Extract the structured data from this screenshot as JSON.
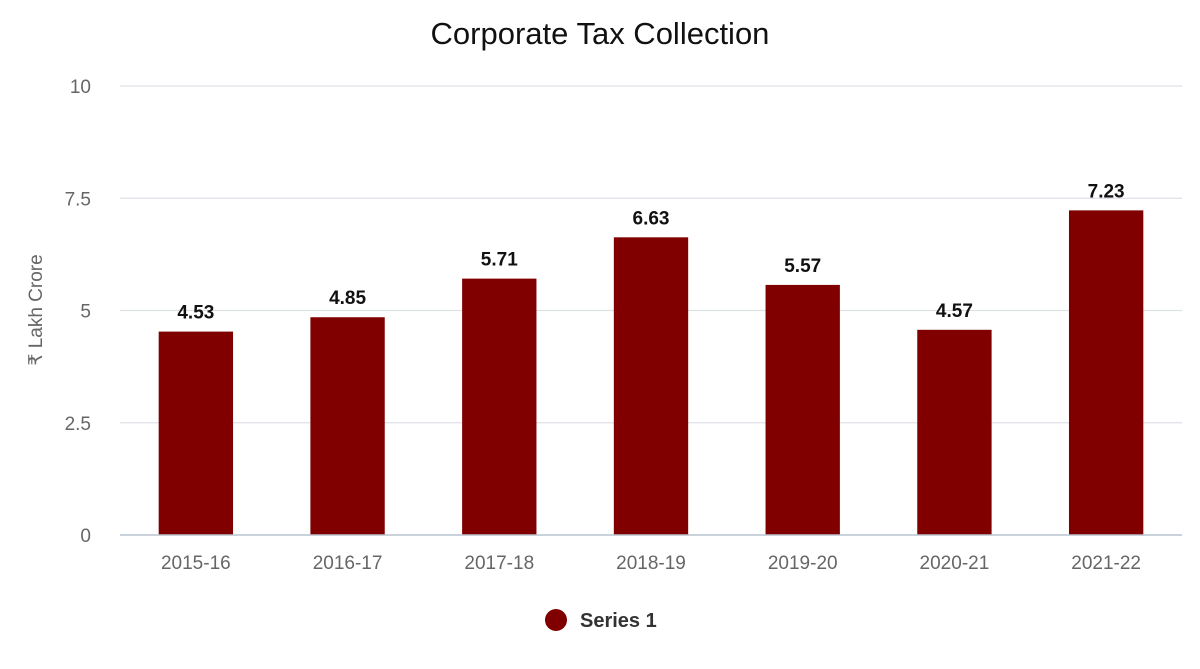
{
  "chart_data": {
    "type": "bar",
    "title": "Corporate Tax Collection",
    "xlabel": "",
    "ylabel": "₹ Lakh Crore",
    "categories": [
      "2015-16",
      "2016-17",
      "2017-18",
      "2018-19",
      "2019-20",
      "2020-21",
      "2021-22"
    ],
    "series": [
      {
        "name": "Series 1",
        "values": [
          4.53,
          4.85,
          5.71,
          6.63,
          5.57,
          4.57,
          7.23
        ],
        "labels": [
          "4.53",
          "4.85",
          "5.71",
          "6.63",
          "5.57",
          "4.57",
          "7.23"
        ],
        "color": "#800000"
      }
    ],
    "ylim": [
      0,
      10
    ],
    "yticks": [
      0,
      2.5,
      5,
      7.5,
      10
    ],
    "ytick_labels": [
      "0",
      "2.5",
      "5",
      "7.5",
      "10"
    ],
    "grid": true,
    "legend": "bottom-center"
  }
}
